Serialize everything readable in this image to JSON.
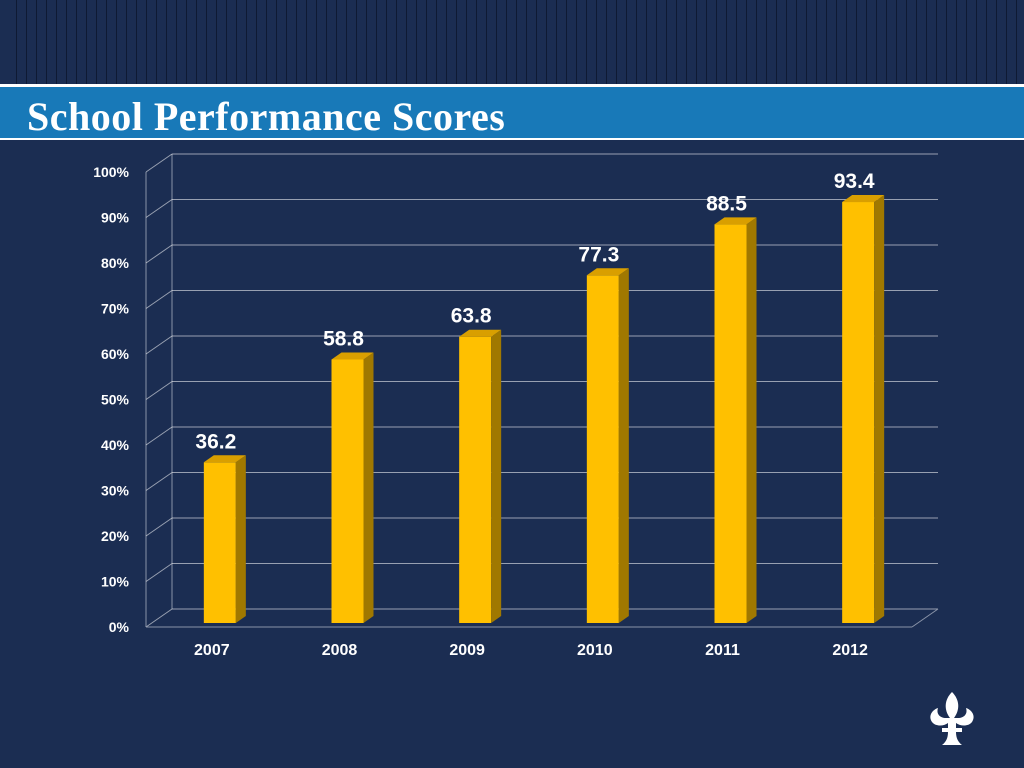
{
  "slide": {
    "title": "School Performance Scores"
  },
  "colors": {
    "background": "#1b2d52",
    "title_bar": "#1879b8",
    "bar_front": "#ffc000",
    "bar_side": "#a07800",
    "bar_top": "#d99f00",
    "gridline": "#ffffff",
    "text": "#ffffff"
  },
  "chart_data": {
    "type": "bar",
    "categories": [
      "2007",
      "2008",
      "2009",
      "2010",
      "2011",
      "2012"
    ],
    "values": [
      36.2,
      58.8,
      63.8,
      77.3,
      88.5,
      93.4
    ],
    "data_labels": [
      "36.2",
      "58.8",
      "63.8",
      "77.3",
      "88.5",
      "93.4"
    ],
    "title": "",
    "xlabel": "",
    "ylabel": "",
    "ylim": [
      0,
      100
    ],
    "ytick_labels": [
      "0%",
      "10%",
      "20%",
      "30%",
      "40%",
      "50%",
      "60%",
      "70%",
      "80%",
      "90%",
      "100%"
    ],
    "grid": true,
    "style": "3d-bar"
  },
  "logo": {
    "icon": "fleur-de-lis-icon"
  }
}
